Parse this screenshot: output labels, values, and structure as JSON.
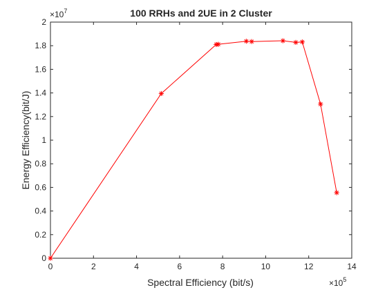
{
  "chart_data": {
    "type": "line",
    "title": "100 RRHs and 2UE in 2 Cluster",
    "xlabel": "Spectral Efficiency (bit/s)",
    "ylabel": "Energy Efficiency(bit/J)",
    "x_multiplier_base": "×10",
    "x_multiplier_exp": "5",
    "y_multiplier_base": "×10",
    "y_multiplier_exp": "7",
    "xlim": [
      0,
      14
    ],
    "ylim": [
      0,
      2
    ],
    "x_ticks": [
      0,
      2,
      4,
      6,
      8,
      10,
      12,
      14
    ],
    "y_ticks": [
      0,
      0.2,
      0.4,
      0.6,
      0.8,
      1,
      1.2,
      1.4,
      1.6,
      1.8,
      2
    ],
    "x_tick_labels": [
      "0",
      "2",
      "4",
      "6",
      "8",
      "10",
      "12",
      "14"
    ],
    "y_tick_labels": [
      "0",
      "0.2",
      "0.4",
      "0.6",
      "0.8",
      "1",
      "1.2",
      "1.4",
      "1.6",
      "1.8",
      "2"
    ],
    "grid": false,
    "line_color": "#ff0000",
    "marker": "asterisk",
    "series": [
      {
        "x": [
          0,
          5.15,
          7.7,
          7.8,
          9.1,
          9.35,
          10.8,
          11.4,
          11.7,
          12.55,
          13.3
        ],
        "y": [
          0,
          1.395,
          1.81,
          1.812,
          1.838,
          1.835,
          1.842,
          1.828,
          1.832,
          1.305,
          0.555
        ]
      }
    ]
  }
}
